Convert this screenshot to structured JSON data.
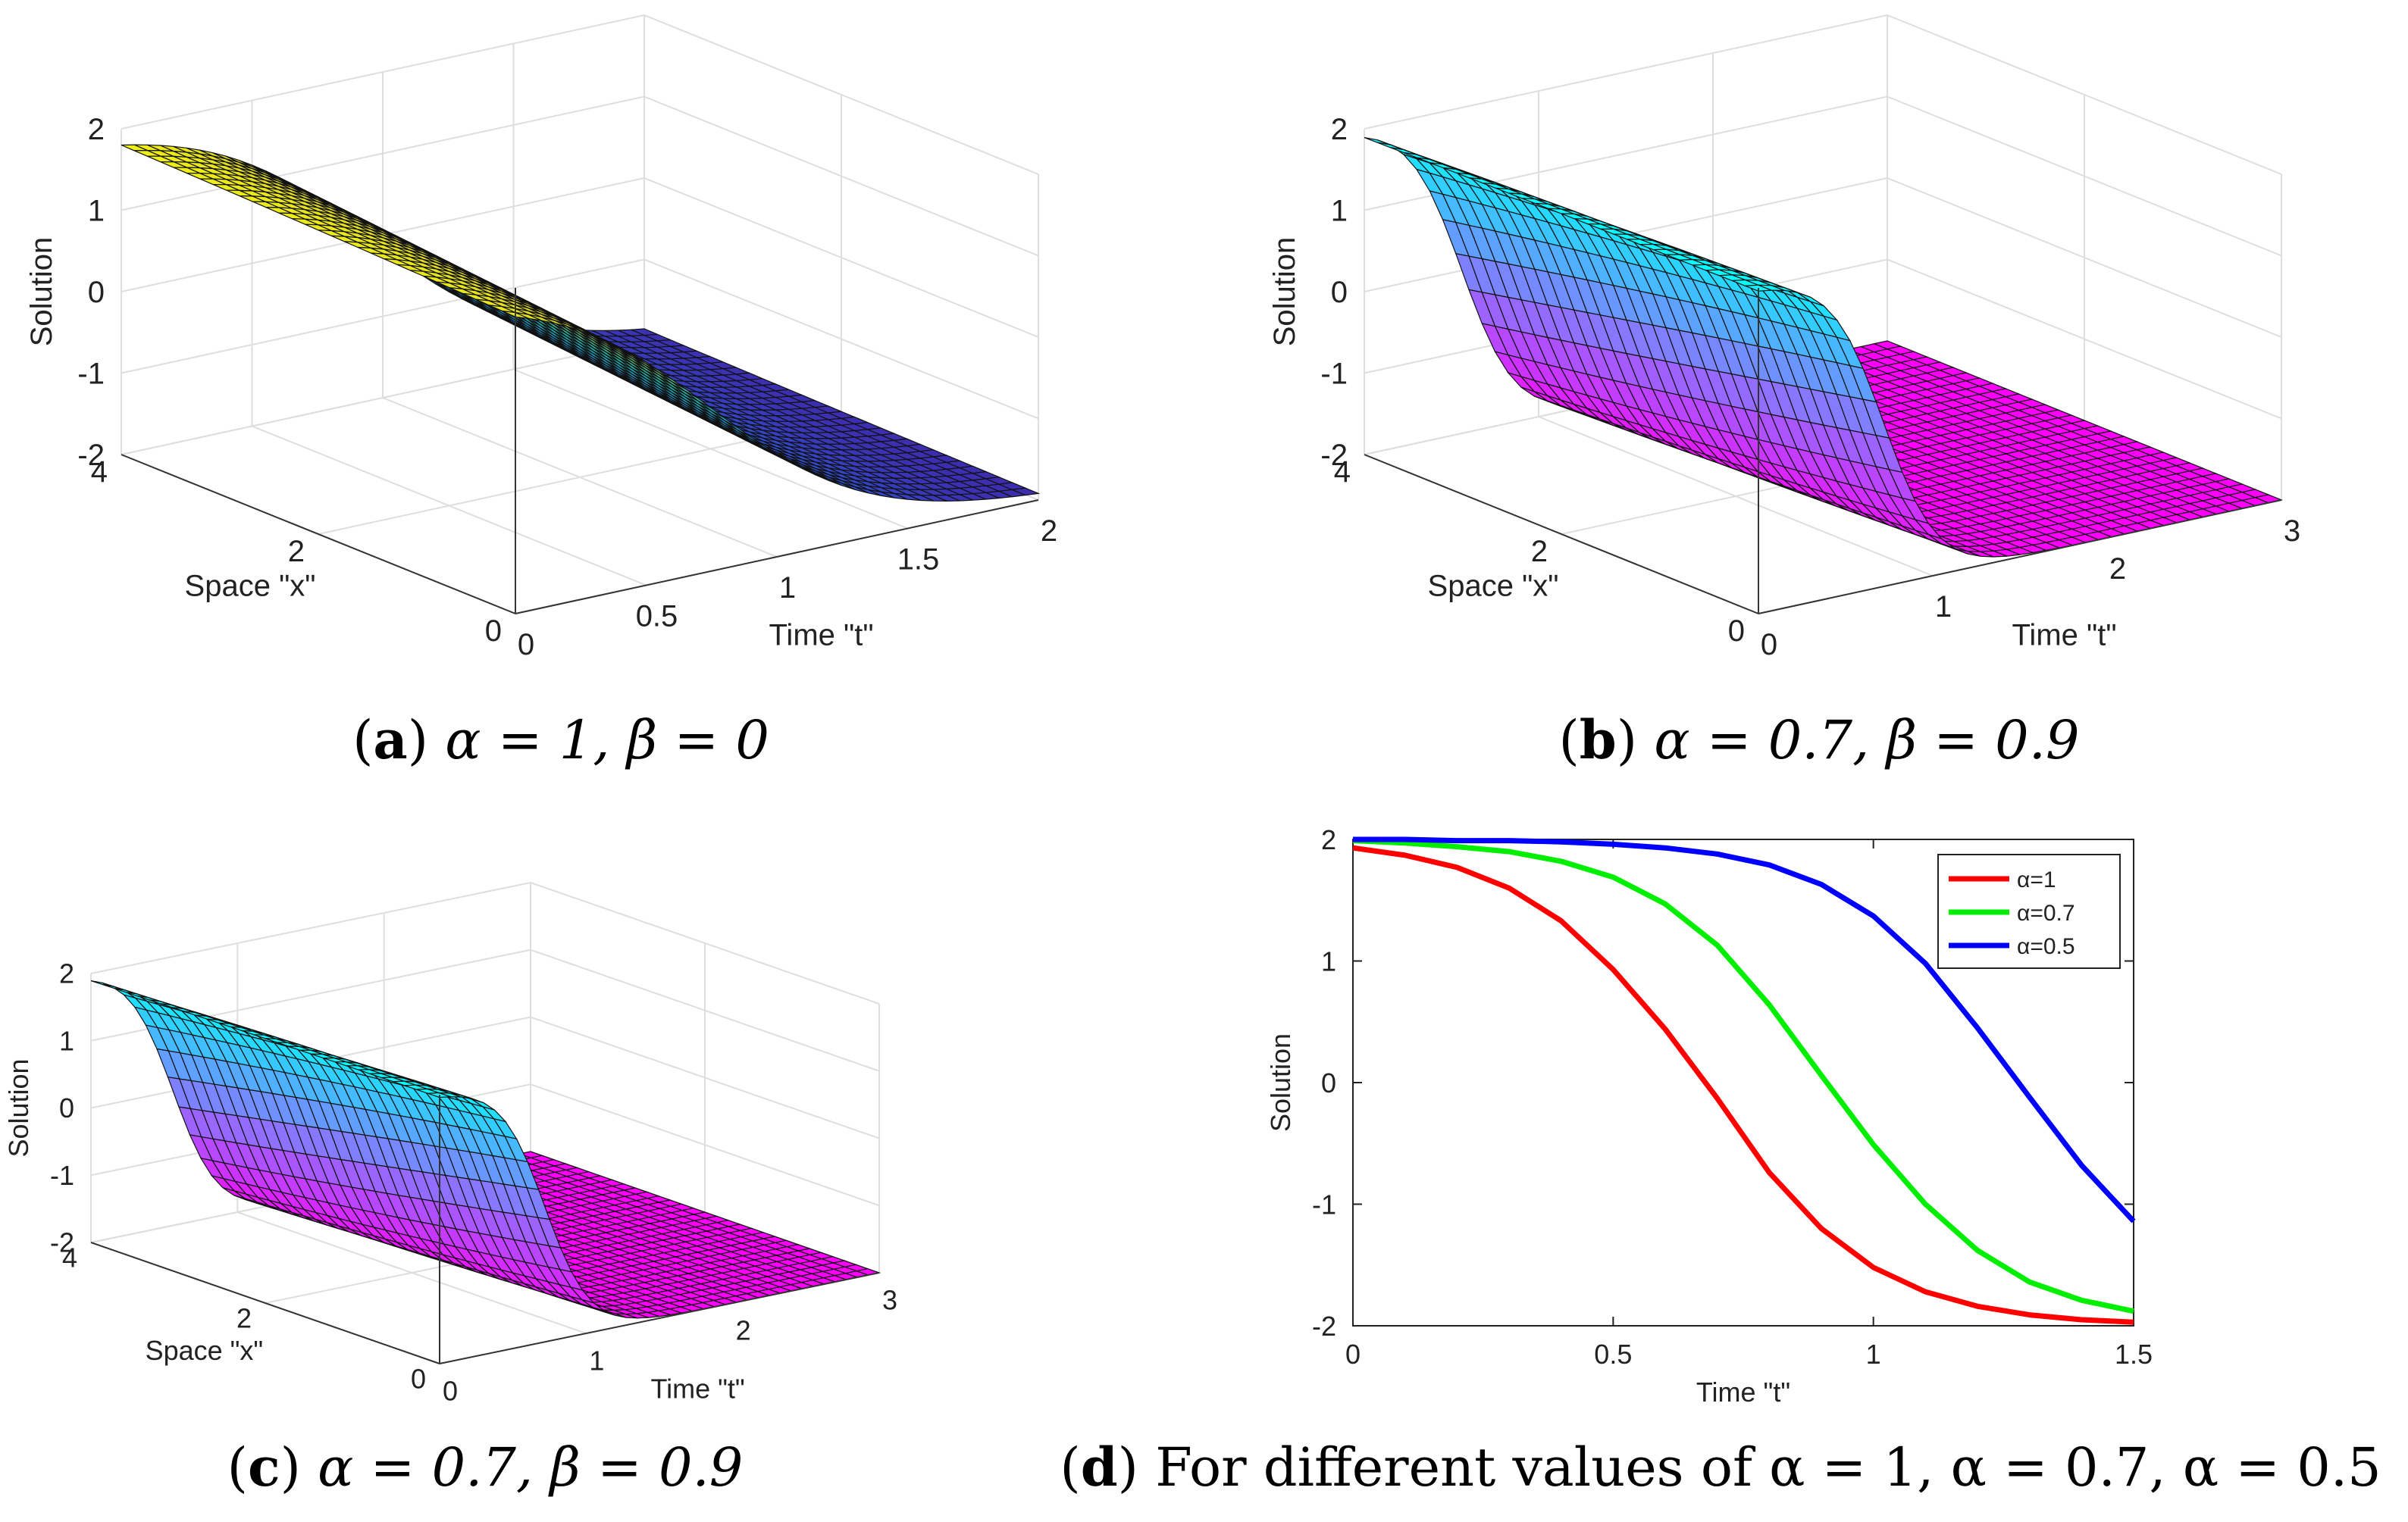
{
  "panels": [
    {
      "id": "a",
      "caption": {
        "label": "a",
        "text": "α = 1, β = 0"
      },
      "chart_data": {
        "type": "surface",
        "xlabel": "Space \"x\"",
        "ylabel": "Time \"t\"",
        "zlabel": "Solution",
        "x_ticks": [
          "0",
          "2",
          "4"
        ],
        "t_ticks": [
          "0",
          "0.5",
          "1",
          "1.5",
          "2"
        ],
        "z_ticks": [
          "-2",
          "-1",
          "0",
          "1",
          "2"
        ],
        "xlim": [
          0,
          4
        ],
        "tlim": [
          0,
          2
        ],
        "zlim": [
          -2,
          2
        ],
        "colormap": "parula",
        "grid": true
      }
    },
    {
      "id": "b",
      "caption": {
        "label": "b",
        "text": "α = 0.7, β = 0.9"
      },
      "chart_data": {
        "type": "surface",
        "xlabel": "Space \"x\"",
        "ylabel": "Time \"t\"",
        "zlabel": "Solution",
        "x_ticks": [
          "0",
          "2",
          "4"
        ],
        "t_ticks": [
          "0",
          "1",
          "2",
          "3"
        ],
        "z_ticks": [
          "-2",
          "-1",
          "0",
          "1",
          "2"
        ],
        "xlim": [
          0,
          4
        ],
        "tlim": [
          0,
          3
        ],
        "zlim": [
          -2,
          2
        ],
        "colormap": "cool",
        "grid": true
      }
    },
    {
      "id": "c",
      "caption": {
        "label": "c",
        "text": "α = 0.7, β = 0.9"
      },
      "chart_data": {
        "type": "surface",
        "xlabel": "Space \"x\"",
        "ylabel": "Time \"t\"",
        "zlabel": "Solution",
        "x_ticks": [
          "0",
          "2",
          "4"
        ],
        "t_ticks": [
          "0",
          "1",
          "2",
          "3"
        ],
        "z_ticks": [
          "-2",
          "-1",
          "0",
          "1",
          "2"
        ],
        "xlim": [
          0,
          4
        ],
        "tlim": [
          0,
          3
        ],
        "zlim": [
          -2,
          2
        ],
        "colormap": "cool",
        "grid": true
      }
    },
    {
      "id": "d",
      "caption": {
        "label": "d",
        "text": "For different values of α = 1, α = 0.7, α = 0.5"
      },
      "chart_data": {
        "type": "line",
        "xlabel": "Time \"t\"",
        "ylabel": "Solution",
        "xlim": [
          0,
          1.5
        ],
        "ylim": [
          -2,
          2
        ],
        "x_ticks": [
          0,
          0.5,
          1,
          1.5
        ],
        "y_ticks": [
          -2,
          -1,
          0,
          1,
          2
        ],
        "legend_position": "top-right",
        "x": [
          0,
          0.1,
          0.2,
          0.3,
          0.4,
          0.5,
          0.6,
          0.7,
          0.8,
          0.9,
          1.0,
          1.1,
          1.2,
          1.3,
          1.4,
          1.5
        ],
        "series": [
          {
            "name": "α=1",
            "color": "#ff0000",
            "values": [
              1.93,
              1.87,
              1.77,
              1.6,
              1.33,
              0.93,
              0.44,
              -0.13,
              -0.74,
              -1.2,
              -1.52,
              -1.72,
              -1.84,
              -1.91,
              -1.95,
              -1.97
            ]
          },
          {
            "name": "α=0.7",
            "color": "#00ee00",
            "values": [
              1.99,
              1.97,
              1.94,
              1.9,
              1.82,
              1.69,
              1.47,
              1.13,
              0.64,
              0.06,
              -0.51,
              -1.0,
              -1.38,
              -1.64,
              -1.79,
              -1.88
            ]
          },
          {
            "name": "α=0.5",
            "color": "#0000ff",
            "values": [
              2.0,
              2.0,
              1.99,
              1.99,
              1.98,
              1.96,
              1.93,
              1.88,
              1.79,
              1.63,
              1.37,
              0.98,
              0.45,
              -0.12,
              -0.68,
              -1.14
            ]
          }
        ]
      }
    }
  ]
}
